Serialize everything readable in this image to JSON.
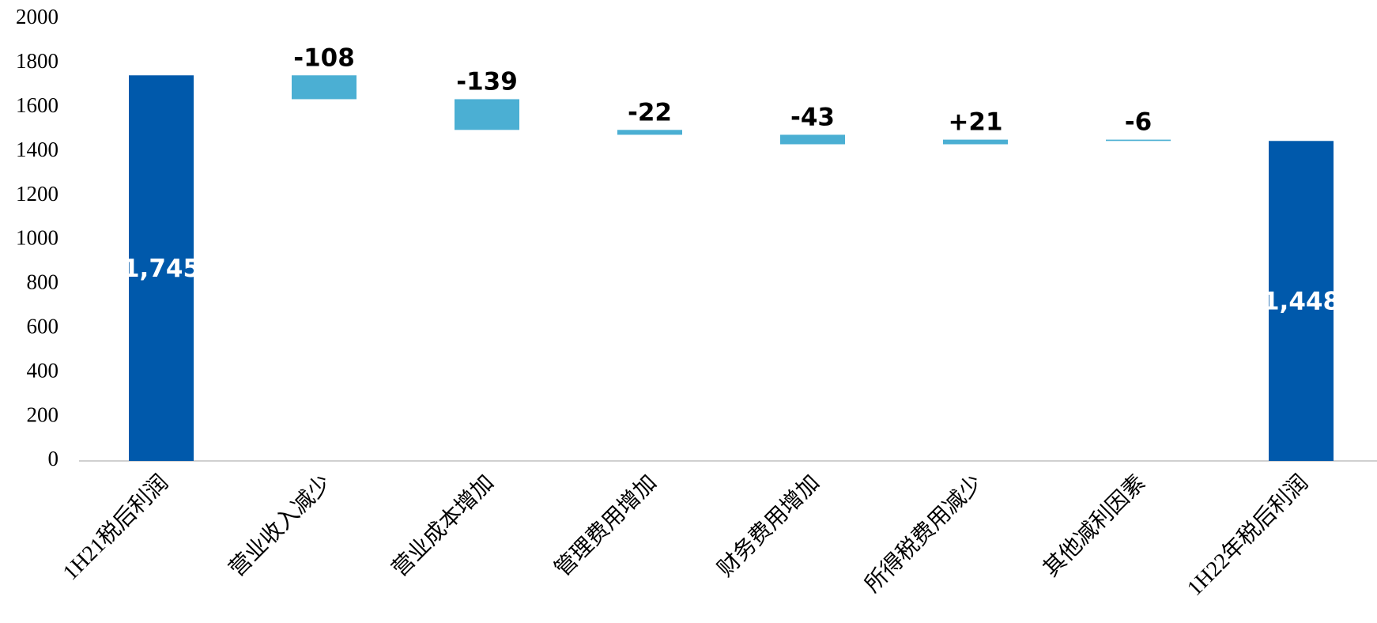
{
  "chart_data": {
    "type": "waterfall",
    "categories": [
      "1H21税后利润",
      "营业收入减少",
      "营业成本增加",
      "管理费用增加",
      "财务费用增加",
      "所得税费用减少",
      "其他减利因素",
      "1H22年税后利润"
    ],
    "measure": [
      "absolute",
      "relative",
      "relative",
      "relative",
      "relative",
      "relative",
      "relative",
      "absolute"
    ],
    "values": [
      1745,
      -108,
      -139,
      -22,
      -43,
      21,
      -6,
      1448
    ],
    "value_labels": [
      "1,745",
      "-108",
      "-139",
      "-22",
      "-43",
      "+21",
      "-6",
      "1,448"
    ],
    "colors": [
      "#0059ab",
      "#4bafd3",
      "#4bafd3",
      "#4bafd3",
      "#4bafd3",
      "#4bafd3",
      "#4bafd3",
      "#0059ab"
    ],
    "ylim": [
      0,
      2000
    ],
    "yticks": [
      0,
      200,
      400,
      600,
      800,
      1000,
      1200,
      1400,
      1600,
      1800,
      2000
    ]
  }
}
